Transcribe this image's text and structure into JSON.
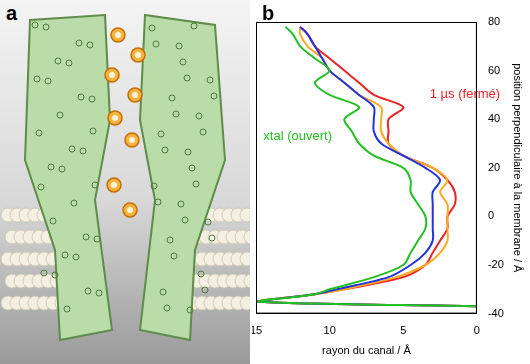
{
  "panel_labels": [
    "a",
    "b"
  ],
  "chart_data": {
    "type": "line",
    "x_label": "rayon du canal / Å",
    "y_label": "position perpendiculaire à la membrane / Å",
    "xlim": [
      0,
      15
    ],
    "xticks": [
      0,
      5,
      10,
      15
    ],
    "ylim": [
      -40,
      80
    ],
    "yticks": [
      -40,
      -20,
      0,
      20,
      40,
      60,
      80
    ],
    "grid": false,
    "series": [
      {
        "color": "#22c022",
        "y": [
          -37,
          -35,
          -32,
          -30,
          -25,
          -20,
          -15,
          -10,
          -5,
          0,
          5,
          10,
          15,
          20,
          25,
          30,
          35,
          40,
          45,
          50,
          55,
          60,
          65,
          70,
          75,
          78
        ],
        "x": [
          0,
          15,
          11,
          10,
          7,
          5,
          4.5,
          4,
          3.5,
          3.5,
          4,
          4.5,
          4.5,
          5,
          7,
          8,
          8.5,
          9,
          8,
          10,
          11,
          10,
          11,
          12,
          12.5,
          13
        ]
      },
      {
        "color": "#2233dd",
        "y": [
          -37,
          -35,
          -32,
          -30,
          -25,
          -20,
          -15,
          -10,
          -5,
          0,
          5,
          10,
          15,
          20,
          25,
          30,
          35,
          40,
          45,
          50,
          55,
          60,
          65,
          70,
          75,
          78
        ],
        "x": [
          0,
          15,
          11,
          9.5,
          6,
          4.5,
          3.5,
          3,
          3,
          3,
          3,
          3,
          2.5,
          3.5,
          5,
          6.5,
          7,
          7,
          7,
          8,
          9,
          10,
          10.5,
          11,
          11.5,
          12
        ]
      },
      {
        "color": "#ffaa22",
        "y": [
          -37,
          -35,
          -32,
          -30,
          -25,
          -20,
          -15,
          -10,
          -5,
          0,
          5,
          10,
          15,
          20,
          25,
          30,
          35,
          40,
          45,
          50,
          55,
          60,
          65,
          70,
          75,
          78
        ],
        "x": [
          0,
          15,
          11,
          9,
          5.5,
          3.5,
          2.5,
          2,
          2,
          2,
          2,
          2.5,
          2,
          3,
          5,
          6,
          6.5,
          6.5,
          6.5,
          8,
          9,
          10,
          10.5,
          11.5,
          12,
          12
        ]
      },
      {
        "color": "#ee2222",
        "y": [
          -37,
          -35,
          -32,
          -30,
          -25,
          -20,
          -15,
          -10,
          -5,
          0,
          5,
          10,
          15,
          20,
          25,
          30,
          35,
          40,
          45,
          50,
          55,
          60,
          65,
          70,
          75,
          78
        ],
        "x": [
          0,
          15,
          11,
          9,
          5,
          3.5,
          3,
          2.5,
          2,
          2,
          1.5,
          1.5,
          2,
          3,
          5,
          6,
          6,
          6,
          5,
          7,
          8,
          9,
          10,
          11,
          11.5,
          12
        ]
      }
    ],
    "annotations": [
      {
        "text": "xtal (ouvert)",
        "x": 14.5,
        "y": 33,
        "color": "#22c022"
      },
      {
        "text": "1 µs (fermé)",
        "x": 3.2,
        "y": 50,
        "color": "#ee2222"
      }
    ]
  }
}
